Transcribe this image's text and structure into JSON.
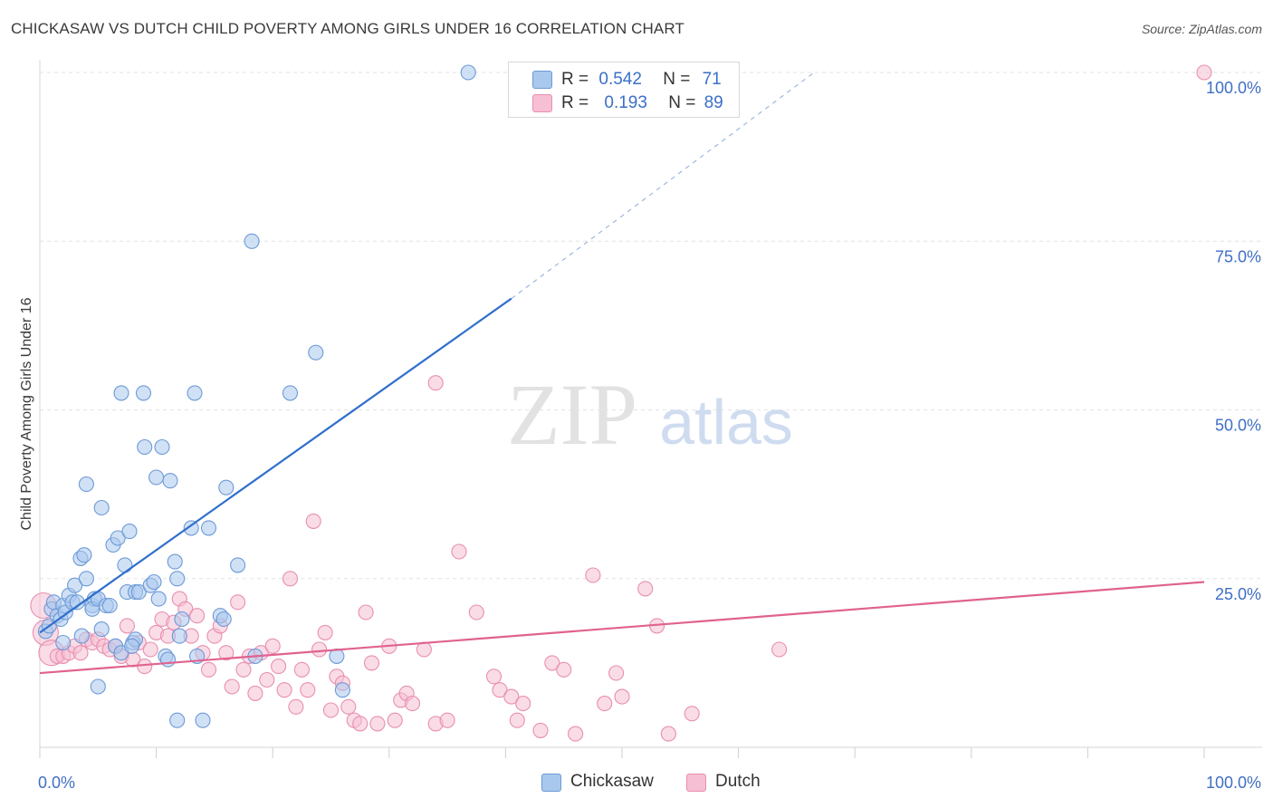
{
  "header": {
    "title": "CHICKASAW VS DUTCH CHILD POVERTY AMONG GIRLS UNDER 16 CORRELATION CHART",
    "source": "Source: ZipAtlas.com"
  },
  "watermark": {
    "zip": "ZIP",
    "atlas": "atlas"
  },
  "colors": {
    "chickasaw_fill": "#a9c8ee",
    "chickasaw_stroke": "#6d9ad6",
    "chickasaw_line": "#2f6fcc",
    "dutch_fill": "#f6bfd3",
    "dutch_stroke": "#e88fb0",
    "dutch_line": "#e0628f",
    "tick_text": "#3f6fc4"
  },
  "legend": {
    "rows": [
      {
        "r_label": "R =",
        "r_value": "0.542",
        "n_label": "N =",
        "n_value": "71"
      },
      {
        "r_label": "R =",
        "r_value": "0.193",
        "n_label": "N =",
        "n_value": "89"
      }
    ],
    "series": [
      "Chickasaw",
      "Dutch"
    ]
  },
  "chart_data": {
    "type": "scatter",
    "title": "CHICKASAW VS DUTCH CHILD POVERTY AMONG GIRLS UNDER 16 CORRELATION CHART",
    "xlabel": "",
    "ylabel": "Child Poverty Among Girls Under 16",
    "xlim": [
      0,
      100
    ],
    "ylim": [
      0,
      100
    ],
    "x_tick_labels": [
      "0.0%",
      "100.0%"
    ],
    "y_tick_labels": [
      "100.0%",
      "75.0%",
      "50.0%",
      "25.0%"
    ],
    "y_ticks": [
      100,
      75,
      50,
      25
    ],
    "grid": true,
    "legend_position": "top-center",
    "series": [
      {
        "name": "Chickasaw",
        "r": 0.542,
        "n": 71,
        "trend": {
          "x0": 0,
          "y0": 17.0,
          "x1": 40.5,
          "y1": 66.5,
          "dash_to_x": 66.5,
          "dash_to_y": 100
        },
        "points": [
          [
            0.5,
            17.2
          ],
          [
            0.8,
            18.0
          ],
          [
            1.0,
            20.5
          ],
          [
            1.2,
            21.5
          ],
          [
            1.5,
            19.5
          ],
          [
            1.8,
            19.0
          ],
          [
            2.0,
            21.0
          ],
          [
            2.2,
            20.0
          ],
          [
            2.0,
            15.5
          ],
          [
            2.5,
            22.5
          ],
          [
            2.8,
            21.5
          ],
          [
            3.0,
            24.0
          ],
          [
            3.2,
            21.5
          ],
          [
            3.5,
            28.0
          ],
          [
            3.6,
            16.5
          ],
          [
            3.8,
            28.5
          ],
          [
            4.0,
            25.0
          ],
          [
            4.0,
            39.0
          ],
          [
            4.5,
            21.0
          ],
          [
            4.7,
            22.0
          ],
          [
            4.5,
            20.5
          ],
          [
            5.0,
            22.0
          ],
          [
            5.0,
            9.0
          ],
          [
            5.3,
            35.5
          ],
          [
            5.3,
            17.5
          ],
          [
            5.7,
            21.0
          ],
          [
            6.0,
            21.0
          ],
          [
            6.3,
            30.0
          ],
          [
            6.5,
            15.0
          ],
          [
            6.7,
            31.0
          ],
          [
            7.0,
            14.0
          ],
          [
            7.3,
            27.0
          ],
          [
            7.5,
            23.0
          ],
          [
            7.7,
            32.0
          ],
          [
            8.0,
            15.5
          ],
          [
            8.2,
            16.0
          ],
          [
            8.2,
            23.0
          ],
          [
            8.5,
            23.0
          ],
          [
            7.0,
            52.5
          ],
          [
            8.9,
            52.5
          ],
          [
            9.0,
            44.5
          ],
          [
            9.5,
            24.0
          ],
          [
            9.8,
            24.5
          ],
          [
            10.0,
            40.0
          ],
          [
            10.2,
            22.0
          ],
          [
            10.5,
            44.5
          ],
          [
            10.8,
            13.5
          ],
          [
            11.2,
            39.5
          ],
          [
            11.6,
            27.5
          ],
          [
            11.8,
            25.0
          ],
          [
            12.0,
            16.5
          ],
          [
            12.2,
            19.0
          ],
          [
            13.0,
            32.5
          ],
          [
            13.5,
            13.5
          ],
          [
            13.3,
            52.5
          ],
          [
            14.0,
            4.0
          ],
          [
            14.5,
            32.5
          ],
          [
            15.5,
            19.5
          ],
          [
            15.8,
            19.0
          ],
          [
            16.0,
            38.5
          ],
          [
            17.0,
            27.0
          ],
          [
            18.5,
            13.5
          ],
          [
            18.2,
            75.0
          ],
          [
            21.5,
            52.5
          ],
          [
            23.7,
            58.5
          ],
          [
            25.5,
            13.5
          ],
          [
            26.0,
            8.5
          ],
          [
            36.8,
            100.0
          ],
          [
            11.8,
            4.0
          ],
          [
            7.9,
            15.0
          ],
          [
            11.0,
            13.0
          ]
        ]
      },
      {
        "name": "Dutch",
        "r": 0.193,
        "n": 89,
        "trend": {
          "x0": 0,
          "y0": 11.0,
          "x1": 100,
          "y1": 24.5
        },
        "points": [
          [
            0.3,
            21.0
          ],
          [
            0.5,
            17.0
          ],
          [
            1.0,
            14.0
          ],
          [
            1.5,
            13.5
          ],
          [
            2.0,
            13.5
          ],
          [
            2.5,
            14.0
          ],
          [
            3.0,
            15.0
          ],
          [
            3.5,
            14.0
          ],
          [
            4.0,
            16.0
          ],
          [
            4.5,
            15.5
          ],
          [
            5.0,
            16.0
          ],
          [
            5.5,
            15.0
          ],
          [
            6.0,
            14.5
          ],
          [
            6.5,
            15.0
          ],
          [
            7.0,
            13.5
          ],
          [
            7.5,
            18.0
          ],
          [
            8.0,
            13.0
          ],
          [
            8.5,
            15.5
          ],
          [
            9.0,
            12.0
          ],
          [
            9.5,
            14.5
          ],
          [
            10.0,
            17.0
          ],
          [
            10.5,
            19.0
          ],
          [
            11.0,
            16.5
          ],
          [
            11.5,
            18.5
          ],
          [
            12.0,
            22.0
          ],
          [
            12.5,
            20.5
          ],
          [
            13.0,
            16.5
          ],
          [
            13.5,
            19.5
          ],
          [
            14.0,
            14.0
          ],
          [
            14.5,
            11.5
          ],
          [
            15.0,
            16.5
          ],
          [
            15.5,
            18.0
          ],
          [
            16.0,
            14.0
          ],
          [
            16.5,
            9.0
          ],
          [
            17.0,
            21.5
          ],
          [
            17.5,
            11.5
          ],
          [
            18.0,
            13.5
          ],
          [
            18.5,
            8.0
          ],
          [
            19.0,
            14.0
          ],
          [
            19.5,
            10.0
          ],
          [
            20.0,
            15.0
          ],
          [
            20.5,
            12.0
          ],
          [
            21.0,
            8.5
          ],
          [
            21.5,
            25.0
          ],
          [
            22.0,
            6.0
          ],
          [
            22.5,
            11.5
          ],
          [
            23.0,
            8.5
          ],
          [
            23.5,
            33.5
          ],
          [
            24.0,
            14.5
          ],
          [
            24.5,
            17.0
          ],
          [
            25.0,
            5.5
          ],
          [
            25.5,
            10.5
          ],
          [
            26.0,
            9.5
          ],
          [
            26.5,
            6.0
          ],
          [
            27.0,
            4.0
          ],
          [
            27.5,
            3.5
          ],
          [
            28.0,
            20.0
          ],
          [
            28.5,
            12.5
          ],
          [
            29.0,
            3.5
          ],
          [
            30.0,
            15.0
          ],
          [
            30.5,
            4.0
          ],
          [
            31.0,
            7.0
          ],
          [
            31.5,
            8.0
          ],
          [
            32.0,
            6.5
          ],
          [
            33.0,
            14.5
          ],
          [
            34.0,
            3.5
          ],
          [
            35.0,
            4.0
          ],
          [
            36.0,
            29.0
          ],
          [
            37.5,
            20.0
          ],
          [
            39.0,
            10.5
          ],
          [
            39.5,
            8.5
          ],
          [
            40.5,
            7.5
          ],
          [
            41.5,
            6.5
          ],
          [
            41.0,
            4.0
          ],
          [
            43.0,
            2.5
          ],
          [
            44.0,
            12.5
          ],
          [
            45.0,
            11.5
          ],
          [
            46.0,
            2.0
          ],
          [
            47.5,
            25.5
          ],
          [
            48.5,
            6.5
          ],
          [
            49.5,
            11.0
          ],
          [
            50.0,
            7.5
          ],
          [
            52.0,
            23.5
          ],
          [
            53.0,
            18.0
          ],
          [
            54.0,
            2.0
          ],
          [
            56.0,
            5.0
          ],
          [
            63.5,
            14.5
          ],
          [
            100.0,
            100.0
          ],
          [
            34.0,
            54.0
          ]
        ]
      }
    ]
  }
}
